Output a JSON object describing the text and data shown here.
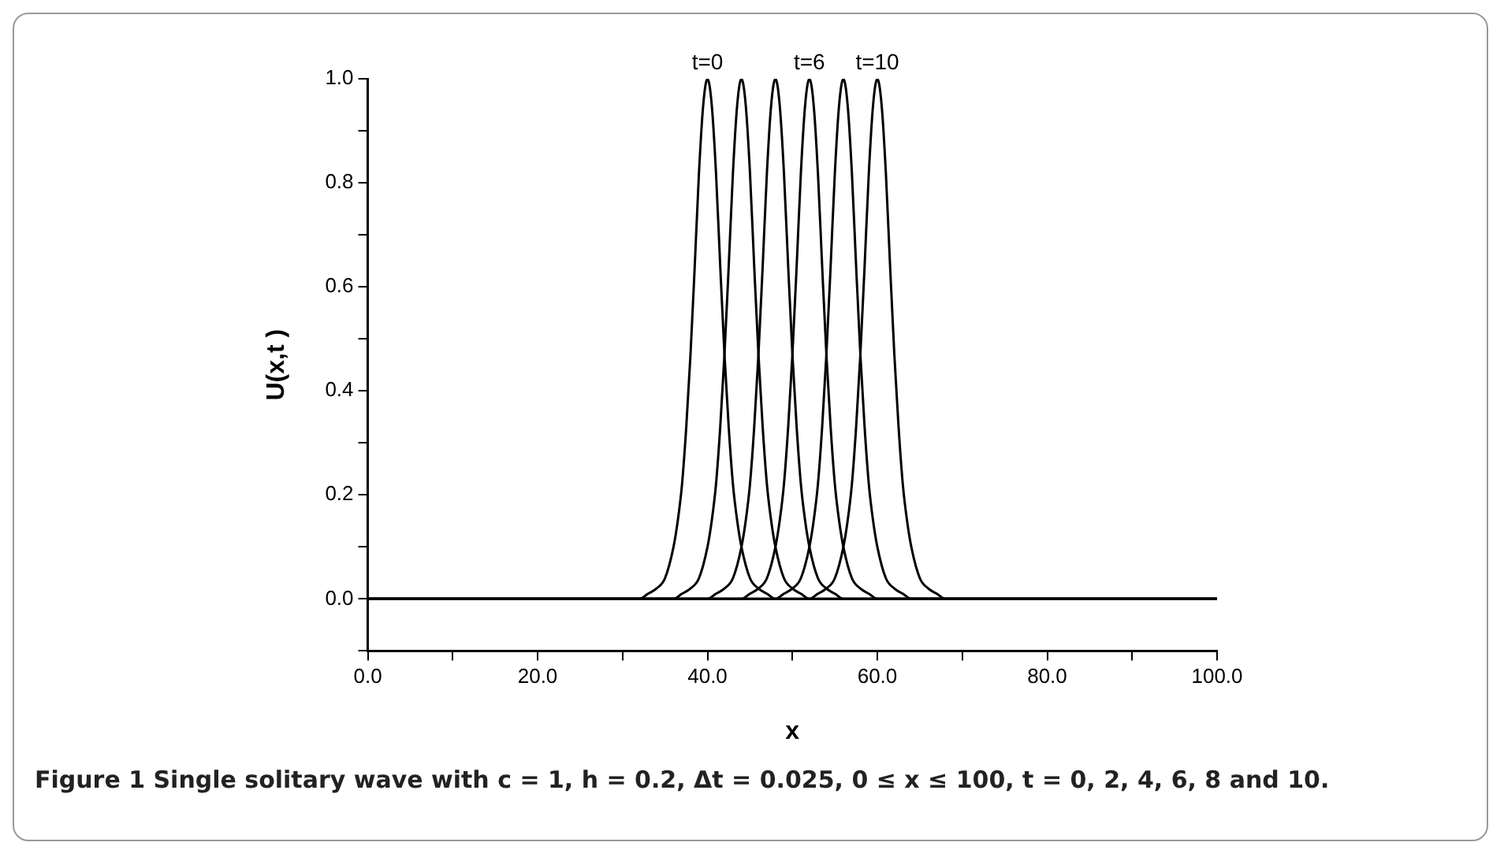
{
  "chart_data": {
    "type": "line",
    "xlabel": "x",
    "ylabel": "U(x,t )",
    "xlim": [
      0,
      100
    ],
    "ylim": [
      -0.1,
      1.0
    ],
    "xticks": [
      {
        "value": 0,
        "label": "0.0"
      },
      {
        "value": 10,
        "label": null
      },
      {
        "value": 20,
        "label": "20.0"
      },
      {
        "value": 30,
        "label": null
      },
      {
        "value": 40,
        "label": "40.0"
      },
      {
        "value": 50,
        "label": null
      },
      {
        "value": 60,
        "label": "60.0"
      },
      {
        "value": 70,
        "label": null
      },
      {
        "value": 80,
        "label": "80.0"
      },
      {
        "value": 90,
        "label": null
      },
      {
        "value": 100,
        "label": "100.0"
      }
    ],
    "yticks": [
      {
        "value": -0.1,
        "label": null
      },
      {
        "value": 0,
        "label": "0.0"
      },
      {
        "value": 0.1,
        "label": null
      },
      {
        "value": 0.2,
        "label": "0.2"
      },
      {
        "value": 0.3,
        "label": null
      },
      {
        "value": 0.4,
        "label": "0.4"
      },
      {
        "value": 0.5,
        "label": null
      },
      {
        "value": 0.6,
        "label": "0.6"
      },
      {
        "value": 0.7,
        "label": null
      },
      {
        "value": 0.8,
        "label": "0.8"
      },
      {
        "value": 0.9,
        "label": null
      },
      {
        "value": 1.0,
        "label": "1.0"
      }
    ],
    "marker": "none",
    "line_style": "solid",
    "series": [
      {
        "color": "#000000",
        "x": [
          0,
          32,
          33,
          34,
          35,
          36,
          36.5,
          37,
          37.5,
          38,
          38.5,
          39,
          39.5,
          40,
          40.5,
          41,
          41.5,
          42,
          42.5,
          43,
          43.5,
          44,
          45,
          46,
          47,
          48,
          100
        ],
        "values": [
          0,
          0,
          0.01,
          0.02,
          0.04,
          0.1,
          0.15,
          0.22,
          0.33,
          0.47,
          0.64,
          0.82,
          0.95,
          1,
          0.95,
          0.82,
          0.64,
          0.47,
          0.33,
          0.22,
          0.15,
          0.1,
          0.04,
          0.02,
          0.01,
          0,
          0
        ]
      },
      {
        "color": "#000000",
        "x": [
          0,
          36,
          37,
          38,
          39,
          40,
          40.5,
          41,
          41.5,
          42,
          42.5,
          43,
          43.5,
          44,
          44.5,
          45,
          45.5,
          46,
          46.5,
          47,
          47.5,
          48,
          49,
          50,
          51,
          52,
          100
        ],
        "values": [
          0,
          0,
          0.01,
          0.02,
          0.04,
          0.1,
          0.15,
          0.22,
          0.33,
          0.47,
          0.64,
          0.82,
          0.95,
          1,
          0.95,
          0.82,
          0.64,
          0.47,
          0.33,
          0.22,
          0.15,
          0.1,
          0.04,
          0.02,
          0.01,
          0,
          0
        ]
      },
      {
        "color": "#000000",
        "x": [
          0,
          40,
          41,
          42,
          43,
          44,
          44.5,
          45,
          45.5,
          46,
          46.5,
          47,
          47.5,
          48,
          48.5,
          49,
          49.5,
          50,
          50.5,
          51,
          51.5,
          52,
          53,
          54,
          55,
          56,
          100
        ],
        "values": [
          0,
          0,
          0.01,
          0.02,
          0.04,
          0.1,
          0.15,
          0.22,
          0.33,
          0.47,
          0.64,
          0.82,
          0.95,
          1,
          0.95,
          0.82,
          0.64,
          0.47,
          0.33,
          0.22,
          0.15,
          0.1,
          0.04,
          0.02,
          0.01,
          0,
          0
        ]
      },
      {
        "color": "#000000",
        "x": [
          0,
          44,
          45,
          46,
          47,
          48,
          48.5,
          49,
          49.5,
          50,
          50.5,
          51,
          51.5,
          52,
          52.5,
          53,
          53.5,
          54,
          54.5,
          55,
          55.5,
          56,
          57,
          58,
          59,
          60,
          100
        ],
        "values": [
          0,
          0,
          0.01,
          0.02,
          0.04,
          0.1,
          0.15,
          0.22,
          0.33,
          0.47,
          0.64,
          0.82,
          0.95,
          1,
          0.95,
          0.82,
          0.64,
          0.47,
          0.33,
          0.22,
          0.15,
          0.1,
          0.04,
          0.02,
          0.01,
          0,
          0
        ]
      },
      {
        "color": "#000000",
        "x": [
          0,
          48,
          49,
          50,
          51,
          52,
          52.5,
          53,
          53.5,
          54,
          54.5,
          55,
          55.5,
          56,
          56.5,
          57,
          57.5,
          58,
          58.5,
          59,
          59.5,
          60,
          61,
          62,
          63,
          64,
          100
        ],
        "values": [
          0,
          0,
          0.01,
          0.02,
          0.04,
          0.1,
          0.15,
          0.22,
          0.33,
          0.47,
          0.64,
          0.82,
          0.95,
          1,
          0.95,
          0.82,
          0.64,
          0.47,
          0.33,
          0.22,
          0.15,
          0.1,
          0.04,
          0.02,
          0.01,
          0,
          0
        ]
      },
      {
        "color": "#000000",
        "x": [
          0,
          52,
          53,
          54,
          55,
          56,
          56.5,
          57,
          57.5,
          58,
          58.5,
          59,
          59.5,
          60,
          60.5,
          61,
          61.5,
          62,
          62.5,
          63,
          63.5,
          64,
          65,
          66,
          67,
          68,
          100
        ],
        "values": [
          0,
          0,
          0.01,
          0.02,
          0.04,
          0.1,
          0.15,
          0.22,
          0.33,
          0.47,
          0.64,
          0.82,
          0.95,
          1,
          0.95,
          0.82,
          0.64,
          0.47,
          0.33,
          0.22,
          0.15,
          0.1,
          0.04,
          0.02,
          0.01,
          0,
          0
        ]
      }
    ],
    "annotations": [
      {
        "text": "t=0",
        "x": 40,
        "y": 1.0
      },
      {
        "text": "t=6",
        "x": 52,
        "y": 1.0
      },
      {
        "text": "t=10",
        "x": 60,
        "y": 1.0
      },
      "Figure 1  Single solitary wave with c = 1, h = 0.2, Δt = 0.025, 0 ≤ x ≤ 100, t = 0, 2, 4, 6, 8 and 10."
    ]
  }
}
